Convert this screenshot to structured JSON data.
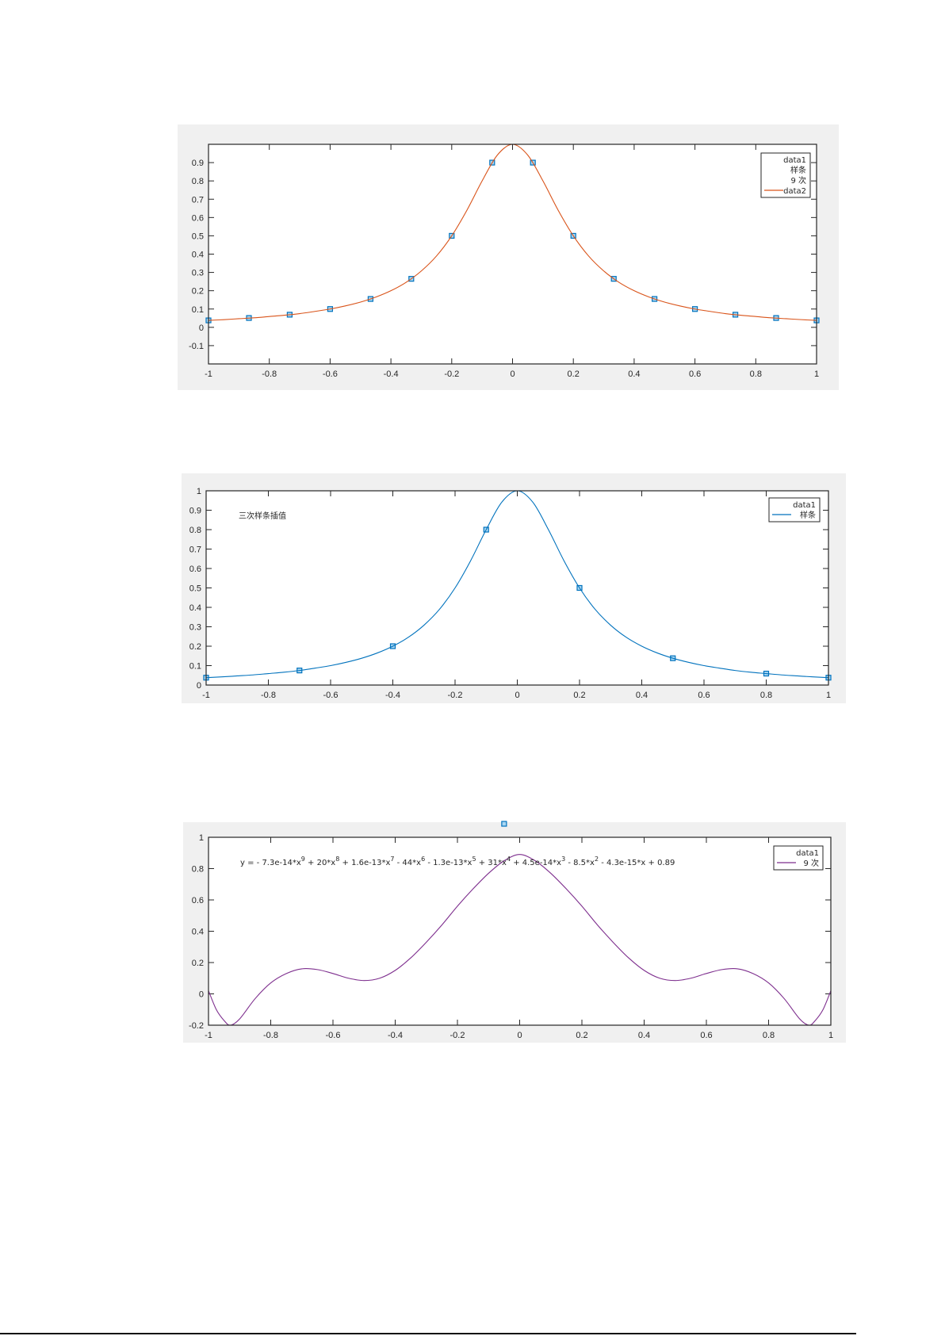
{
  "chart_data": [
    {
      "type": "line",
      "xlim": [
        -1,
        1
      ],
      "ylim": [
        -0.2,
        1
      ],
      "xticks": [
        -1,
        -0.8,
        -0.6,
        -0.4,
        -0.2,
        0,
        0.2,
        0.4,
        0.6,
        0.8,
        1
      ],
      "xtick_labels": [
        "-1",
        "-0.8",
        "-0.6",
        "-0.4",
        "-0.2",
        "0",
        "0.2",
        "0.4",
        "0.6",
        "0.8",
        "1"
      ],
      "yticks": [
        -0.1,
        0,
        0.1,
        0.2,
        0.3,
        0.4,
        0.5,
        0.6,
        0.7,
        0.8,
        0.9
      ],
      "ytick_labels": [
        "-0.1",
        "0",
        "0.1",
        "0.2",
        "0.3",
        "0.4",
        "0.5",
        "0.6",
        "0.7",
        "0.8",
        "0.9"
      ],
      "grid": false,
      "legend_position": "top-right",
      "legend": [
        {
          "label": "data1",
          "color": null
        },
        {
          "label": "样条",
          "color": null
        },
        {
          "label": "9 次",
          "color": null
        },
        {
          "label": "data2",
          "color": "#d95319"
        }
      ],
      "annotation": "",
      "series": [
        {
          "name": "data1",
          "kind": "markers",
          "color": "#0072bd",
          "x": [
            -1,
            -0.867,
            -0.733,
            -0.6,
            -0.467,
            -0.333,
            -0.2,
            -0.067,
            0.067,
            0.2,
            0.333,
            0.467,
            0.6,
            0.733,
            0.867,
            1
          ],
          "y": [
            0.038,
            0.051,
            0.069,
            0.1,
            0.155,
            0.265,
            0.5,
            0.9,
            0.9,
            0.5,
            0.265,
            0.155,
            0.1,
            0.069,
            0.051,
            0.038
          ]
        },
        {
          "name": "data2",
          "kind": "line",
          "color": "#d95319",
          "x": [
            -1,
            -0.95,
            -0.9,
            -0.85,
            -0.8,
            -0.75,
            -0.7,
            -0.65,
            -0.6,
            -0.55,
            -0.5,
            -0.45,
            -0.4,
            -0.35,
            -0.3,
            -0.25,
            -0.2,
            -0.15,
            -0.1,
            -0.05,
            0,
            0.05,
            0.1,
            0.15,
            0.2,
            0.25,
            0.3,
            0.35,
            0.4,
            0.45,
            0.5,
            0.55,
            0.6,
            0.65,
            0.7,
            0.75,
            0.8,
            0.85,
            0.9,
            0.95,
            1
          ],
          "y": [
            0.038,
            0.042,
            0.047,
            0.052,
            0.059,
            0.066,
            0.075,
            0.087,
            0.1,
            0.117,
            0.138,
            0.165,
            0.2,
            0.246,
            0.308,
            0.39,
            0.5,
            0.64,
            0.8,
            0.941,
            1,
            0.941,
            0.8,
            0.64,
            0.5,
            0.39,
            0.308,
            0.246,
            0.2,
            0.165,
            0.138,
            0.117,
            0.1,
            0.087,
            0.075,
            0.066,
            0.059,
            0.052,
            0.047,
            0.042,
            0.038
          ]
        }
      ]
    },
    {
      "type": "line",
      "xlim": [
        -1,
        1
      ],
      "ylim": [
        0,
        1
      ],
      "xticks": [
        -1,
        -0.8,
        -0.6,
        -0.4,
        -0.2,
        0,
        0.2,
        0.4,
        0.6,
        0.8,
        1
      ],
      "xtick_labels": [
        "-1",
        "-0.8",
        "-0.6",
        "-0.4",
        "-0.2",
        "0",
        "0.2",
        "0.4",
        "0.6",
        "0.8",
        "1"
      ],
      "yticks": [
        0,
        0.1,
        0.2,
        0.3,
        0.4,
        0.5,
        0.6,
        0.7,
        0.8,
        0.9,
        1
      ],
      "ytick_labels": [
        "0",
        "0.1",
        "0.2",
        "0.3",
        "0.4",
        "0.5",
        "0.6",
        "0.7",
        "0.8",
        "0.9",
        "1"
      ],
      "grid": false,
      "legend_position": "top-right",
      "legend": [
        {
          "label": "data1",
          "color": null
        },
        {
          "label": "样条",
          "color": "#0072bd"
        }
      ],
      "annotation": "三次样条插值",
      "series": [
        {
          "name": "data1",
          "kind": "markers",
          "color": "#0072bd",
          "x": [
            -1,
            -0.7,
            -0.4,
            -0.1,
            0.2,
            0.5,
            0.8,
            1
          ],
          "y": [
            0.038,
            0.075,
            0.2,
            0.8,
            0.5,
            0.138,
            0.059,
            0.038
          ]
        },
        {
          "name": "样条",
          "kind": "line",
          "color": "#0072bd",
          "x": [
            -1,
            -0.95,
            -0.9,
            -0.85,
            -0.8,
            -0.75,
            -0.7,
            -0.65,
            -0.6,
            -0.55,
            -0.5,
            -0.45,
            -0.4,
            -0.35,
            -0.3,
            -0.25,
            -0.2,
            -0.15,
            -0.1,
            -0.05,
            0,
            0.05,
            0.1,
            0.15,
            0.2,
            0.25,
            0.3,
            0.35,
            0.4,
            0.45,
            0.5,
            0.55,
            0.6,
            0.65,
            0.7,
            0.75,
            0.8,
            0.85,
            0.9,
            0.95,
            1
          ],
          "y": [
            0.038,
            0.042,
            0.047,
            0.052,
            0.059,
            0.066,
            0.075,
            0.087,
            0.1,
            0.117,
            0.138,
            0.165,
            0.2,
            0.246,
            0.308,
            0.39,
            0.5,
            0.64,
            0.8,
            0.941,
            1,
            0.941,
            0.8,
            0.64,
            0.5,
            0.39,
            0.308,
            0.246,
            0.2,
            0.165,
            0.138,
            0.117,
            0.1,
            0.087,
            0.075,
            0.066,
            0.059,
            0.052,
            0.047,
            0.042,
            0.038
          ]
        }
      ]
    },
    {
      "type": "line",
      "xlim": [
        -1,
        1
      ],
      "ylim": [
        -0.2,
        1
      ],
      "xticks": [
        -1,
        -0.8,
        -0.6,
        -0.4,
        -0.2,
        0,
        0.2,
        0.4,
        0.6,
        0.8,
        1
      ],
      "xtick_labels": [
        "-1",
        "-0.8",
        "-0.6",
        "-0.4",
        "-0.2",
        "0",
        "0.2",
        "0.4",
        "0.6",
        "0.8",
        "1"
      ],
      "yticks": [
        -0.2,
        0,
        0.2,
        0.4,
        0.6,
        0.8,
        1
      ],
      "ytick_labels": [
        "-0.2",
        "0",
        "0.2",
        "0.4",
        "0.6",
        "0.8",
        "1"
      ],
      "grid": false,
      "legend_position": "top-right",
      "legend": [
        {
          "label": "data1",
          "color": null
        },
        {
          "label": "9 次",
          "color": "#7e2f8e"
        }
      ],
      "annotation": "y = - 7.3e-14*x^9 + 20*x^8 + 1.6e-13*x^7 - 44*x^6 - 1.3e-13*x^5 + 31*x^4 + 4.5e-14*x^3 - 8.5*x^2 - 4.3e-15*x + 0.89",
      "series": [
        {
          "name": "data1",
          "kind": "markers",
          "color": "#0072bd",
          "x": [
            -0.05
          ],
          "y": [
            1.1
          ]
        },
        {
          "name": "9 次",
          "kind": "line",
          "color": "#7e2f8e",
          "x": [
            -1,
            -0.975,
            -0.95,
            -0.93,
            -0.9,
            -0.85,
            -0.8,
            -0.75,
            -0.7,
            -0.65,
            -0.6,
            -0.55,
            -0.5,
            -0.45,
            -0.4,
            -0.35,
            -0.3,
            -0.25,
            -0.2,
            -0.15,
            -0.1,
            -0.05,
            0,
            0.05,
            0.1,
            0.15,
            0.2,
            0.25,
            0.3,
            0.35,
            0.4,
            0.45,
            0.5,
            0.55,
            0.6,
            0.65,
            0.7,
            0.75,
            0.8,
            0.85,
            0.9,
            0.93,
            0.95,
            0.975,
            1
          ],
          "y": [
            0.02,
            -0.1,
            -0.17,
            -0.2,
            -0.16,
            -0.03,
            0.07,
            0.13,
            0.16,
            0.155,
            0.13,
            0.1,
            0.085,
            0.1,
            0.15,
            0.23,
            0.33,
            0.44,
            0.56,
            0.67,
            0.77,
            0.85,
            0.89,
            0.85,
            0.77,
            0.67,
            0.56,
            0.44,
            0.33,
            0.23,
            0.15,
            0.1,
            0.085,
            0.1,
            0.13,
            0.155,
            0.16,
            0.13,
            0.07,
            -0.03,
            -0.16,
            -0.2,
            -0.17,
            -0.1,
            0.02
          ]
        }
      ]
    }
  ]
}
